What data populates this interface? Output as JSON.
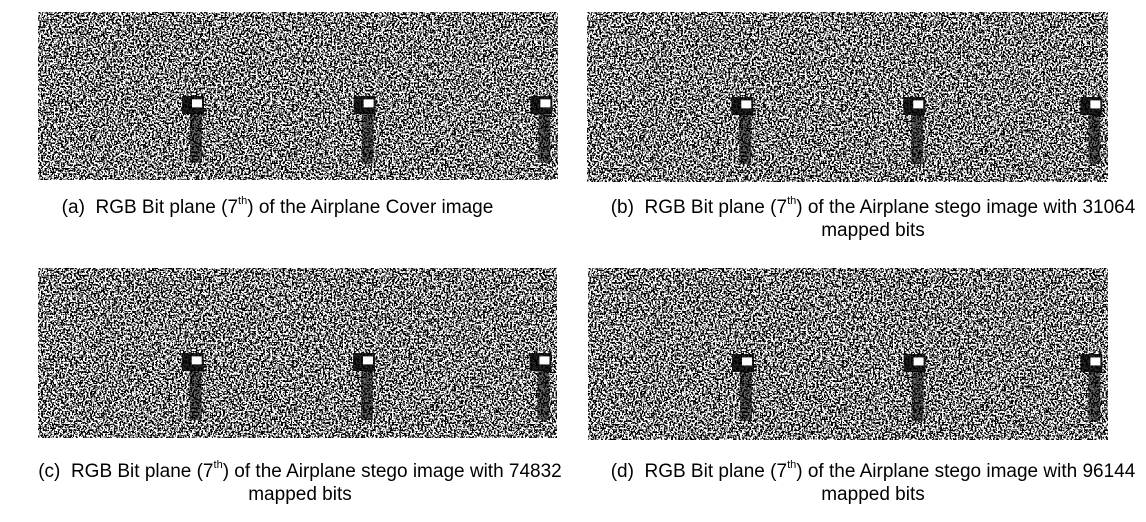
{
  "panels": [
    {
      "label": "(a)",
      "before": "RGB Bit plane (7",
      "sup": "th",
      "after": ") of the Airplane Cover image"
    },
    {
      "label": "(b)",
      "before": "RGB Bit plane (7",
      "sup": "th",
      "after": ") of the Airplane stego image with 31064 mapped bits"
    },
    {
      "label": "(c)",
      "before": "RGB Bit plane (7",
      "sup": "th",
      "after": ") of the Airplane stego image with 74832 mapped bits"
    },
    {
      "label": "(d)",
      "before": "RGB Bit plane (7",
      "sup": "th",
      "after": ") of the Airplane stego image with 96144 mapped bits"
    }
  ]
}
